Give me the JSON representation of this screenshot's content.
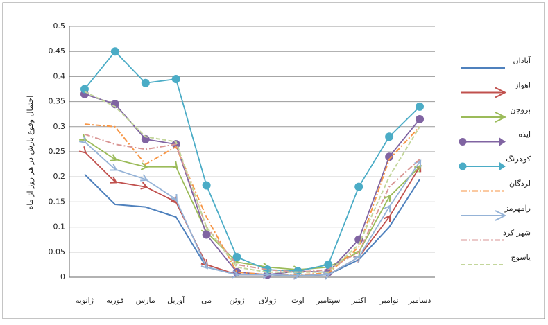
{
  "chart_data": {
    "type": "line",
    "y_label": "احتمال وقوع بارش در هر روز از ماه",
    "categories": [
      "ژانویه",
      "فوریه",
      "مارس",
      "آوریل",
      "می",
      "ژوئن",
      "ژولای",
      "اوت",
      "سپتامبر",
      "اکتبر",
      "نوامبر",
      "دسامبر"
    ],
    "ylim": [
      0,
      0.5
    ],
    "yticks": [
      0,
      0.05,
      0.1,
      0.15,
      0.2,
      0.25,
      0.3,
      0.35,
      0.4,
      0.45,
      0.5
    ],
    "grid": true,
    "legend": "right",
    "series": [
      {
        "name": "آبادان",
        "color": "#4f81bd",
        "style": "solid",
        "marker": "none",
        "values": [
          0.205,
          0.145,
          0.14,
          0.12,
          0.02,
          0.005,
          0.005,
          0.003,
          0.005,
          0.035,
          0.1,
          0.195
        ]
      },
      {
        "name": "اهواز",
        "color": "#c0504d",
        "style": "solid",
        "marker": "arrow",
        "values": [
          0.25,
          0.19,
          0.18,
          0.15,
          0.025,
          0.005,
          0.005,
          0.003,
          0.005,
          0.04,
          0.12,
          0.22
        ]
      },
      {
        "name": "بروجن",
        "color": "#9bbb59",
        "style": "solid",
        "marker": "arrow",
        "values": [
          0.275,
          0.235,
          0.22,
          0.22,
          0.09,
          0.03,
          0.02,
          0.015,
          0.02,
          0.05,
          0.16,
          0.22
        ]
      },
      {
        "name": "ایذه",
        "color": "#8064a2",
        "style": "solid",
        "marker": "circle",
        "values": [
          0.365,
          0.345,
          0.275,
          0.265,
          0.085,
          0.01,
          0.005,
          0.012,
          0.01,
          0.075,
          0.24,
          0.315
        ]
      },
      {
        "name": "کوهرنگ",
        "color": "#4bacc6",
        "style": "solid",
        "marker": "circle",
        "values": [
          0.375,
          0.45,
          0.387,
          0.395,
          0.183,
          0.04,
          0.015,
          0.012,
          0.025,
          0.18,
          0.28,
          0.34
        ]
      },
      {
        "name": "لردگان",
        "color": "#f79646",
        "style": "dashdot",
        "marker": "none",
        "values": [
          0.305,
          0.3,
          0.225,
          0.26,
          0.12,
          0.01,
          0.005,
          0.005,
          0.008,
          0.06,
          0.235,
          0.3
        ]
      },
      {
        "name": "رامهرمز",
        "color": "#95b3d7",
        "style": "solid",
        "marker": "arrow",
        "values": [
          0.27,
          0.215,
          0.195,
          0.155,
          0.02,
          0.005,
          0.005,
          0.003,
          0.005,
          0.04,
          0.14,
          0.23
        ]
      },
      {
        "name": "شهر کرد",
        "color": "#d99694",
        "style": "dashdot",
        "marker": "none",
        "values": [
          0.285,
          0.265,
          0.255,
          0.265,
          0.1,
          0.025,
          0.015,
          0.01,
          0.015,
          0.05,
          0.18,
          0.235
        ]
      },
      {
        "name": "یاسوج",
        "color": "#c3d69b",
        "style": "dashed",
        "marker": "none",
        "values": [
          0.37,
          0.34,
          0.28,
          0.27,
          0.1,
          0.02,
          0.01,
          0.01,
          0.01,
          0.065,
          0.2,
          0.3
        ]
      }
    ]
  }
}
